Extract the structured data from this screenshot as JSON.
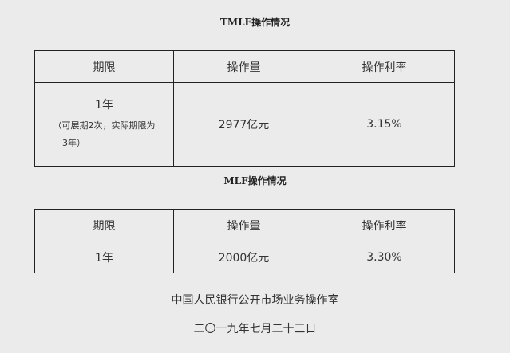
{
  "tmlf": {
    "title": "TMLF操作情况",
    "headers": [
      "期限",
      "操作量",
      "操作利率"
    ],
    "row": {
      "term": "1年",
      "term_note_1": "（可展期2次，实际期限为",
      "term_note_2": "3年）",
      "amount": "2977亿元",
      "rate": "3.15%"
    }
  },
  "mlf": {
    "title": "MLF操作情况",
    "headers": [
      "期限",
      "操作量",
      "操作利率"
    ],
    "row": {
      "term": "1年",
      "amount": "2000亿元",
      "rate": "3.30%"
    }
  },
  "footer": {
    "org": "中国人民银行公开市场业务操作室",
    "date": "二〇一九年七月二十三日"
  }
}
